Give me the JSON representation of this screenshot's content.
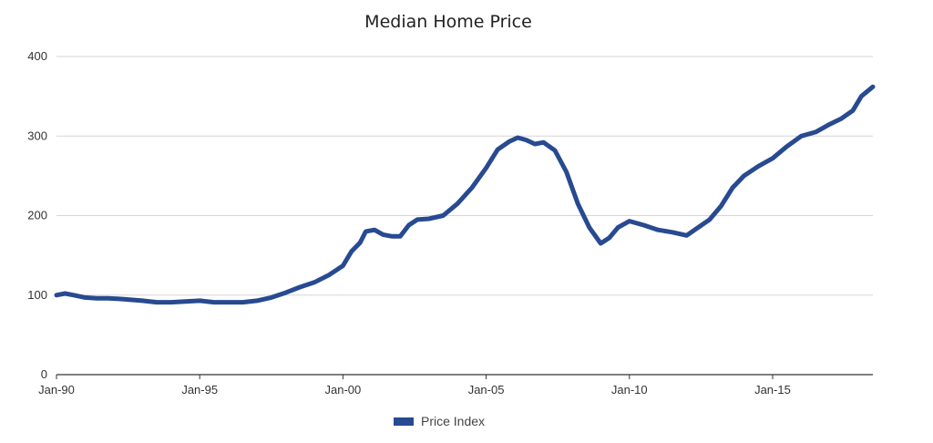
{
  "chart_data": {
    "type": "line",
    "title": "Median Home Price",
    "xlabel": "",
    "ylabel": "",
    "ylim": [
      0,
      400
    ],
    "yticks": [
      0,
      100,
      200,
      300,
      400
    ],
    "xlim": [
      1990.0,
      2018.5
    ],
    "xticks": [
      {
        "value": 1990,
        "label": "Jan-90"
      },
      {
        "value": 1995,
        "label": "Jan-95"
      },
      {
        "value": 2000,
        "label": "Jan-00"
      },
      {
        "value": 2005,
        "label": "Jan-05"
      },
      {
        "value": 2010,
        "label": "Jan-10"
      },
      {
        "value": 2015,
        "label": "Jan-15"
      }
    ],
    "grid": true,
    "legend_position": "bottom",
    "series": [
      {
        "name": "Price Index",
        "color": "#274a91",
        "x": [
          1990.0,
          1990.3,
          1990.6,
          1991.0,
          1991.4,
          1991.8,
          1992.3,
          1993.0,
          1993.5,
          1994.0,
          1994.5,
          1995.0,
          1995.5,
          1996.0,
          1996.5,
          1997.0,
          1997.5,
          1998.0,
          1998.5,
          1999.0,
          1999.5,
          2000.0,
          2000.3,
          2000.6,
          2000.8,
          2001.1,
          2001.4,
          2001.7,
          2002.0,
          2002.3,
          2002.6,
          2003.0,
          2003.5,
          2004.0,
          2004.5,
          2005.0,
          2005.4,
          2005.8,
          2006.1,
          2006.4,
          2006.7,
          2007.0,
          2007.4,
          2007.8,
          2008.2,
          2008.6,
          2009.0,
          2009.3,
          2009.6,
          2010.0,
          2010.5,
          2011.0,
          2011.5,
          2012.0,
          2012.4,
          2012.8,
          2013.2,
          2013.6,
          2014.0,
          2014.5,
          2015.0,
          2015.5,
          2016.0,
          2016.5,
          2017.0,
          2017.4,
          2017.8,
          2018.1,
          2018.5
        ],
        "values": [
          100,
          102,
          100,
          97,
          96,
          96,
          95,
          93,
          91,
          91,
          92,
          93,
          91,
          91,
          91,
          93,
          97,
          103,
          110,
          116,
          125,
          137,
          155,
          166,
          180,
          182,
          176,
          174,
          174,
          188,
          195,
          196,
          200,
          215,
          235,
          260,
          283,
          293,
          298,
          295,
          290,
          292,
          282,
          255,
          215,
          185,
          165,
          172,
          185,
          193,
          188,
          182,
          179,
          175,
          185,
          195,
          212,
          235,
          250,
          262,
          272,
          287,
          300,
          305,
          315,
          322,
          332,
          350,
          362
        ]
      }
    ]
  }
}
